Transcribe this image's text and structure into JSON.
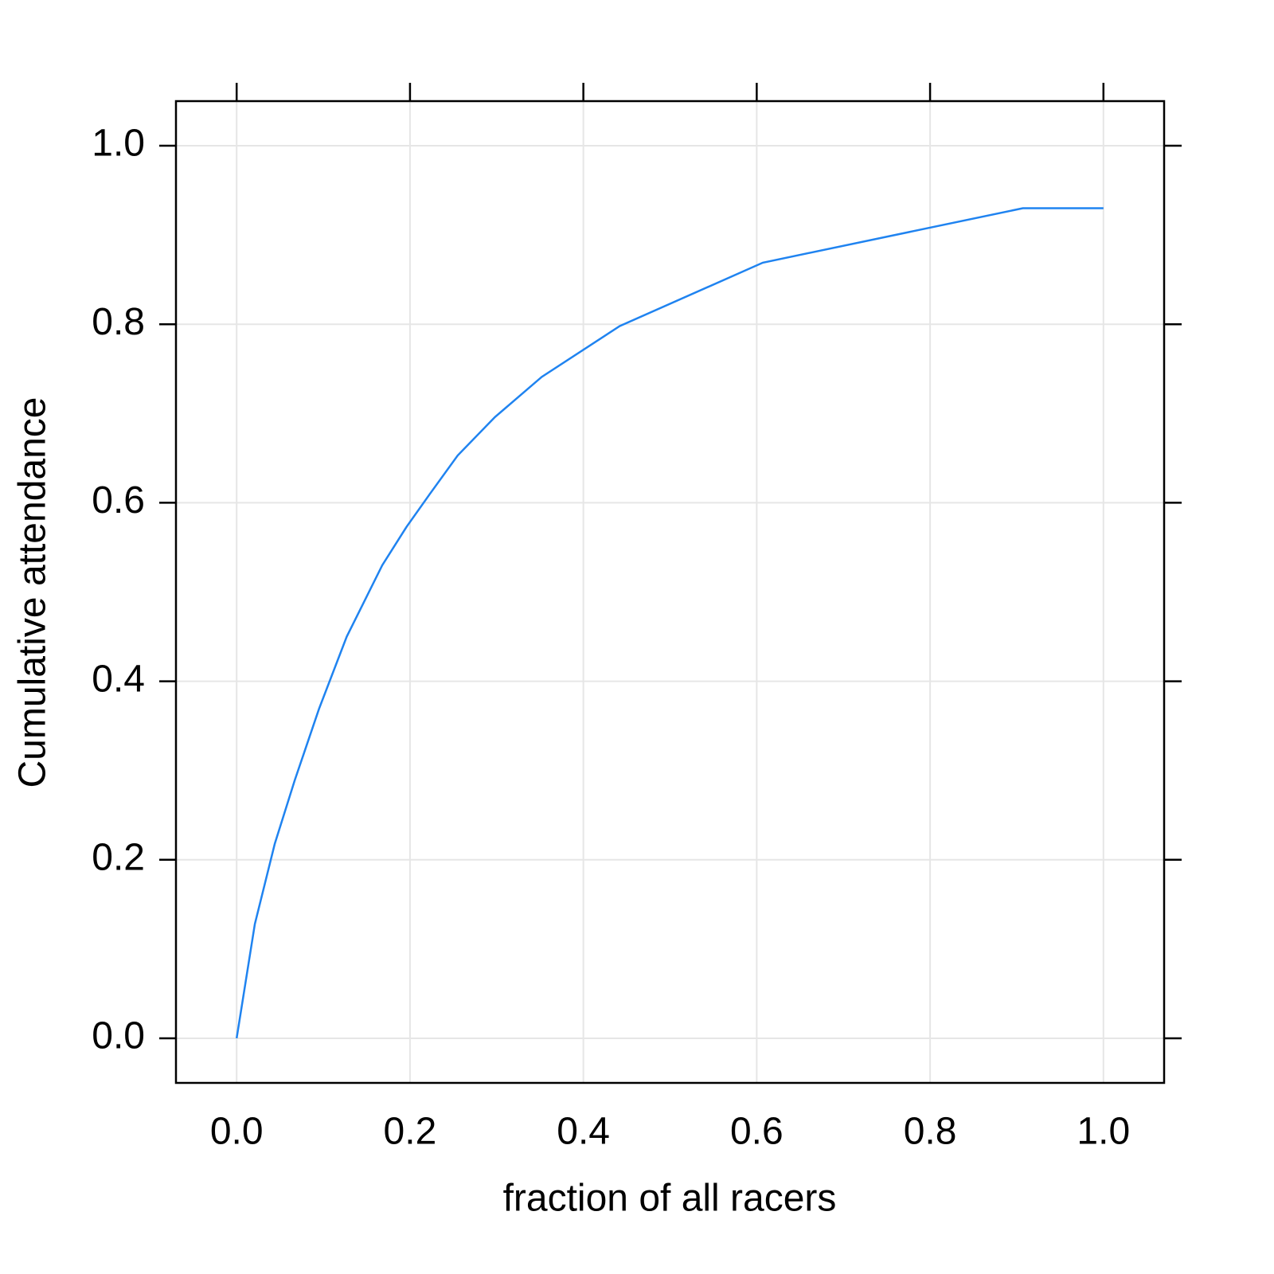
{
  "chart_data": {
    "type": "line",
    "x_label": "fraction of all racers",
    "y_label": "Cumulative attendance",
    "x": [
      0,
      0.021,
      0.044,
      0.067,
      0.095,
      0.127,
      0.168,
      0.196,
      0.223,
      0.255,
      0.298,
      0.352,
      0.442,
      0.607,
      0.907,
      1.0
    ],
    "series": [
      {
        "color": "#1f83f0",
        "values": [
          0,
          0.128,
          0.218,
          0.289,
          0.369,
          0.45,
          0.53,
          0.573,
          0.61,
          0.653,
          0.696,
          0.741,
          0.798,
          0.869,
          0.93,
          0.93
        ]
      }
    ],
    "xlim": [
      -0.07,
      1.07
    ],
    "ylim": [
      -0.05,
      1.05
    ],
    "xticks": [
      {
        "value": 0,
        "label": "0.0"
      },
      0.2,
      0.4,
      0.6,
      0.8,
      {
        "value": 1,
        "label": "1.0"
      }
    ],
    "yticks": [
      {
        "value": 0,
        "label": "0.0"
      },
      0.2,
      0.4,
      0.6,
      0.8,
      {
        "value": 1,
        "label": "1.0"
      }
    ],
    "grid": true
  }
}
